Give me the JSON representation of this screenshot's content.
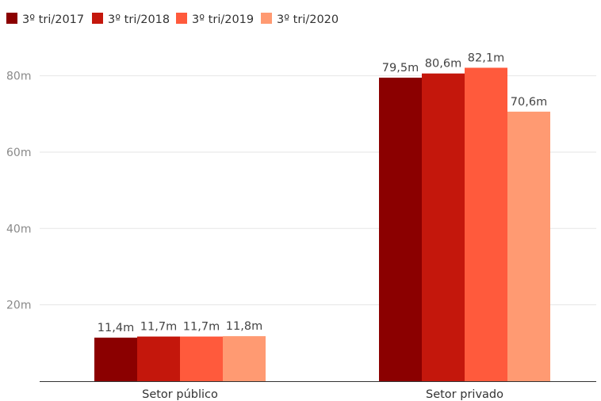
{
  "chart_data": {
    "type": "bar",
    "categories": [
      "Setor público",
      "Setor privado"
    ],
    "series": [
      {
        "name": "3º tri/2017",
        "color": "#8b0000",
        "values": [
          11.4,
          79.5
        ],
        "labels": [
          "11,4m",
          "79,5m"
        ]
      },
      {
        "name": "3º tri/2018",
        "color": "#c4170c",
        "values": [
          11.7,
          80.6
        ],
        "labels": [
          "11,7m",
          "80,6m"
        ]
      },
      {
        "name": "3º tri/2019",
        "color": "#ff5a3c",
        "values": [
          11.7,
          82.1
        ],
        "labels": [
          "11,7m",
          "82,1m"
        ]
      },
      {
        "name": "3º tri/2020",
        "color": "#ff9a72",
        "values": [
          11.8,
          70.6
        ],
        "labels": [
          "11,8m",
          "70,6m"
        ]
      }
    ],
    "ylim": [
      0,
      80
    ],
    "yticks": [
      20,
      40,
      60,
      80
    ],
    "ytick_labels": [
      "20m",
      "40m",
      "60m",
      "80m"
    ],
    "title": "",
    "xlabel": "",
    "ylabel": "",
    "grid": true,
    "legend_position": "top-left"
  }
}
